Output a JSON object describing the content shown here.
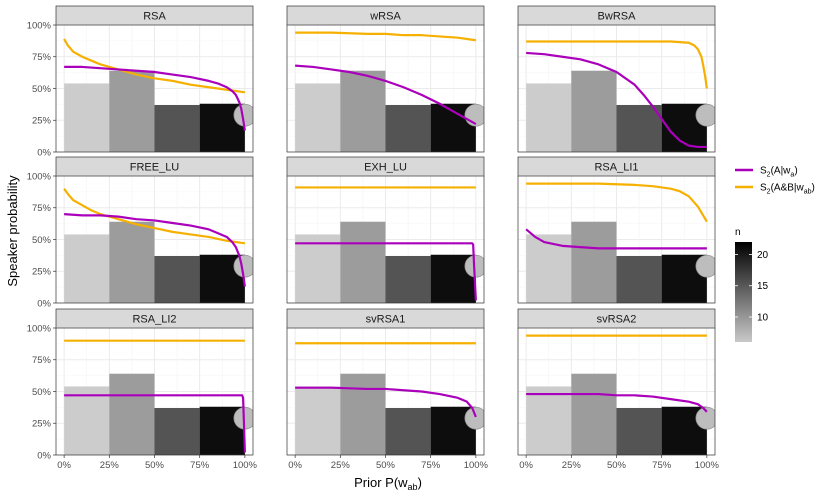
{
  "chart_data": {
    "type": "faceted bar + line",
    "ylabel": "Speaker probability",
    "xlabel": "Prior P(w_ab)",
    "xticks": [
      "0%",
      "25%",
      "50%",
      "75%",
      "100%"
    ],
    "yticks": [
      "0%",
      "25%",
      "50%",
      "75%",
      "100%"
    ],
    "xlim": [
      0,
      1
    ],
    "ylim": [
      0,
      1
    ],
    "bars": [
      {
        "x_start": 0.0,
        "x_end": 0.25,
        "value": 0.54,
        "n": 6
      },
      {
        "x_start": 0.25,
        "x_end": 0.5,
        "value": 0.64,
        "n": 10
      },
      {
        "x_start": 0.5,
        "x_end": 0.75,
        "value": 0.37,
        "n": 16
      },
      {
        "x_start": 0.75,
        "x_end": 1.0,
        "value": 0.38,
        "n": 22
      }
    ],
    "end_marker": {
      "x": 1.0,
      "y": 0.29
    },
    "series_names": [
      "S2(A|wa)",
      "S2(A&B|wab)"
    ],
    "panels": [
      {
        "name": "RSA",
        "purple": {
          "x": [
            0,
            0.1,
            0.2,
            0.3,
            0.4,
            0.5,
            0.6,
            0.7,
            0.8,
            0.85,
            0.9,
            0.93,
            0.95,
            0.97,
            0.98,
            0.99,
            1.0
          ],
          "y": [
            0.67,
            0.67,
            0.66,
            0.65,
            0.64,
            0.63,
            0.61,
            0.59,
            0.56,
            0.54,
            0.51,
            0.48,
            0.45,
            0.39,
            0.34,
            0.26,
            0.17
          ]
        },
        "orange": {
          "x": [
            0,
            0.02,
            0.05,
            0.1,
            0.15,
            0.2,
            0.3,
            0.4,
            0.5,
            0.6,
            0.7,
            0.8,
            0.9,
            1.0
          ],
          "y": [
            0.89,
            0.84,
            0.79,
            0.75,
            0.72,
            0.69,
            0.65,
            0.61,
            0.58,
            0.56,
            0.53,
            0.51,
            0.49,
            0.47
          ]
        }
      },
      {
        "name": "wRSA",
        "purple": {
          "x": [
            0,
            0.1,
            0.2,
            0.3,
            0.4,
            0.5,
            0.6,
            0.7,
            0.8,
            0.9,
            1.0
          ],
          "y": [
            0.68,
            0.67,
            0.65,
            0.63,
            0.6,
            0.56,
            0.51,
            0.45,
            0.38,
            0.3,
            0.22
          ]
        },
        "orange": {
          "x": [
            0,
            0.2,
            0.4,
            0.5,
            0.6,
            0.7,
            0.8,
            0.9,
            1.0
          ],
          "y": [
            0.94,
            0.94,
            0.93,
            0.93,
            0.92,
            0.92,
            0.91,
            0.9,
            0.88
          ]
        }
      },
      {
        "name": "BwRSA",
        "purple": {
          "x": [
            0,
            0.1,
            0.2,
            0.3,
            0.4,
            0.5,
            0.6,
            0.65,
            0.7,
            0.75,
            0.8,
            0.85,
            0.9,
            0.95,
            1.0
          ],
          "y": [
            0.78,
            0.77,
            0.75,
            0.73,
            0.69,
            0.63,
            0.53,
            0.45,
            0.36,
            0.26,
            0.16,
            0.09,
            0.05,
            0.04,
            0.04
          ]
        },
        "orange": {
          "x": [
            0,
            0.3,
            0.6,
            0.8,
            0.9,
            0.93,
            0.95,
            0.97,
            0.98,
            0.99,
            1.0
          ],
          "y": [
            0.87,
            0.87,
            0.87,
            0.87,
            0.86,
            0.84,
            0.81,
            0.75,
            0.68,
            0.6,
            0.5
          ]
        }
      },
      {
        "name": "FREE_LU",
        "purple": {
          "x": [
            0,
            0.1,
            0.2,
            0.3,
            0.4,
            0.5,
            0.6,
            0.7,
            0.8,
            0.85,
            0.9,
            0.93,
            0.95,
            0.97,
            0.98,
            0.99,
            1.0
          ],
          "y": [
            0.7,
            0.69,
            0.69,
            0.68,
            0.66,
            0.65,
            0.63,
            0.61,
            0.58,
            0.55,
            0.52,
            0.48,
            0.44,
            0.37,
            0.31,
            0.23,
            0.13
          ]
        },
        "orange": {
          "x": [
            0,
            0.02,
            0.05,
            0.1,
            0.15,
            0.2,
            0.3,
            0.4,
            0.5,
            0.6,
            0.7,
            0.8,
            0.9,
            1.0
          ],
          "y": [
            0.9,
            0.86,
            0.81,
            0.77,
            0.73,
            0.7,
            0.66,
            0.62,
            0.59,
            0.56,
            0.54,
            0.52,
            0.49,
            0.47
          ]
        }
      },
      {
        "name": "EXH_LU",
        "purple": {
          "x": [
            0,
            0.98,
            0.985,
            0.99,
            1.0
          ],
          "y": [
            0.47,
            0.47,
            0.46,
            0.3,
            0.02
          ]
        },
        "orange": {
          "x": [
            0,
            1.0
          ],
          "y": [
            0.91,
            0.91
          ]
        }
      },
      {
        "name": "RSA_LI1",
        "purple": {
          "x": [
            0,
            0.05,
            0.1,
            0.2,
            0.3,
            0.4,
            0.5,
            1.0
          ],
          "y": [
            0.58,
            0.52,
            0.48,
            0.45,
            0.44,
            0.43,
            0.43,
            0.43
          ]
        },
        "orange": {
          "x": [
            0,
            0.4,
            0.6,
            0.7,
            0.8,
            0.85,
            0.9,
            0.95,
            1.0
          ],
          "y": [
            0.94,
            0.94,
            0.93,
            0.92,
            0.9,
            0.88,
            0.84,
            0.76,
            0.64
          ]
        }
      },
      {
        "name": "RSA_LI2",
        "purple": {
          "x": [
            0,
            0.985,
            0.99,
            0.995,
            1.0
          ],
          "y": [
            0.47,
            0.47,
            0.45,
            0.25,
            0.02
          ]
        },
        "orange": {
          "x": [
            0,
            1.0
          ],
          "y": [
            0.9,
            0.9
          ]
        }
      },
      {
        "name": "svRSA1",
        "purple": {
          "x": [
            0,
            0.2,
            0.4,
            0.5,
            0.6,
            0.7,
            0.8,
            0.9,
            0.95,
            0.98,
            1.0
          ],
          "y": [
            0.53,
            0.53,
            0.52,
            0.52,
            0.51,
            0.5,
            0.48,
            0.45,
            0.42,
            0.37,
            0.3
          ]
        },
        "orange": {
          "x": [
            0,
            1.0
          ],
          "y": [
            0.88,
            0.88
          ]
        }
      },
      {
        "name": "svRSA2",
        "purple": {
          "x": [
            0,
            0.2,
            0.4,
            0.5,
            0.6,
            0.7,
            0.8,
            0.9,
            0.95,
            0.98,
            1.0
          ],
          "y": [
            0.48,
            0.48,
            0.48,
            0.47,
            0.47,
            0.46,
            0.44,
            0.42,
            0.4,
            0.37,
            0.34
          ]
        },
        "orange": {
          "x": [
            0,
            1.0
          ],
          "y": [
            0.94,
            0.94
          ]
        }
      }
    ],
    "legend": {
      "series": [
        {
          "label": "S",
          "sub1": "2",
          "mid": "(A|w",
          "sub2": "a",
          "tail": ")",
          "color": "#aa00bb"
        },
        {
          "label": "S",
          "sub1": "2",
          "mid": "(A&B|w",
          "sub2": "ab",
          "tail": ")",
          "color": "#f5b000"
        }
      ],
      "n_title": "n",
      "n_ticks": [
        10,
        15,
        20
      ],
      "n_range": [
        6,
        22
      ]
    },
    "colors": {
      "purple": "#aa00bb",
      "orange": "#f5b000",
      "strip_bg": "#d9d9d9",
      "grid": "#ebebeb",
      "bar_low": "#c9c9c9",
      "bar_high": "#000000",
      "marker": "#bdbdbd"
    }
  }
}
